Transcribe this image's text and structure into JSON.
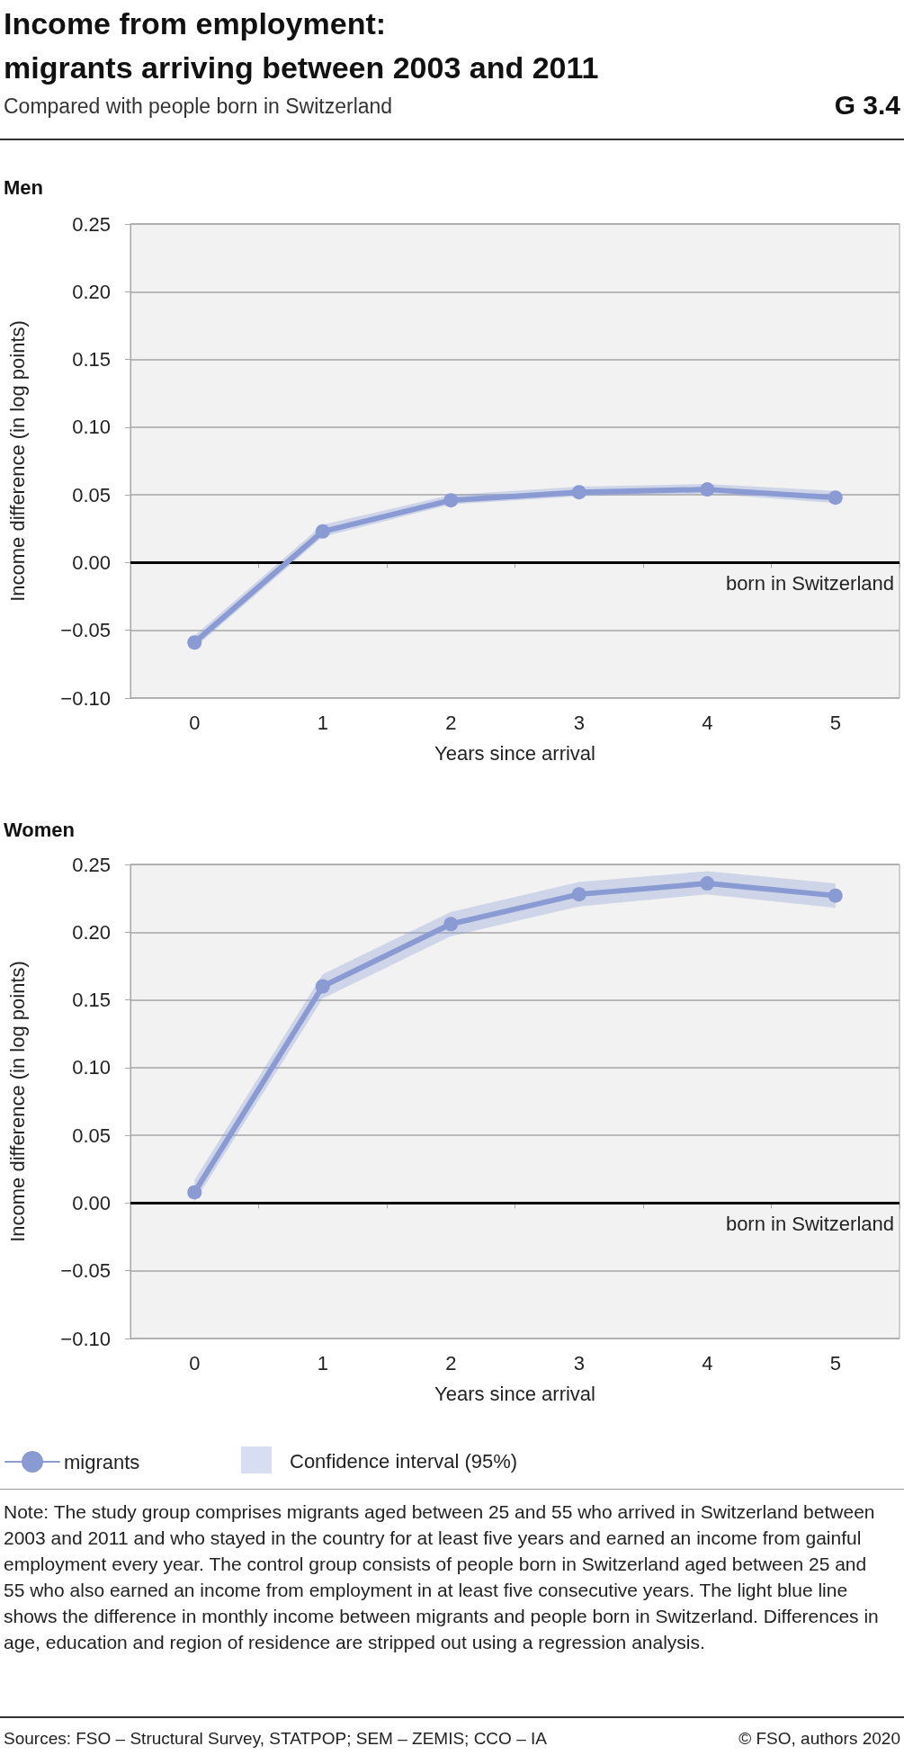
{
  "chart_data": [
    {
      "type": "line",
      "title": "Income from employment:\nmigrants arriving between 2003 and 2011",
      "subtitle": "Compared with people born in Switzerland",
      "annotations": [
        "G 3.4",
        "Men"
      ],
      "xlabel": "Years since arrival",
      "ylabel": "Income difference (in log points)",
      "categories": [
        "0",
        "1",
        "2",
        "3",
        "4",
        "5"
      ],
      "series": [
        {
          "color": "#8a9bd4",
          "values": [
            -0.059,
            0.023,
            0.046,
            0.052,
            0.054,
            0.048
          ],
          "lower": [
            -0.063,
            0.019,
            0.043,
            0.049,
            0.051,
            0.044
          ],
          "upper": [
            -0.054,
            0.028,
            0.05,
            0.056,
            0.058,
            0.053
          ]
        }
      ],
      "ylim": [
        -0.1,
        0.25
      ],
      "yticks": [
        {
          "value": -0.1,
          "label": "−0.10"
        },
        {
          "value": -0.05,
          "label": "−0.05"
        },
        {
          "value": 0,
          "label": "0.00"
        },
        {
          "value": 0.05,
          "label": "0.05"
        },
        {
          "value": 0.1,
          "label": "0.10"
        },
        {
          "value": 0.15,
          "label": "0.15"
        },
        {
          "value": 0.2,
          "label": "0.20"
        },
        {
          "value": 0.25,
          "label": "0.25"
        }
      ],
      "grid": "y",
      "marker": "circle",
      "line_style": "solid",
      "ref_lines": [
        {
          "axis": "y",
          "value": 0,
          "label": "born in Switzerland",
          "color": "#000000"
        }
      ]
    },
    {
      "type": "line",
      "title": "Women",
      "xlabel": "Years since arrival",
      "ylabel": "Income difference (in log points)",
      "categories": [
        "0",
        "1",
        "2",
        "3",
        "4",
        "5"
      ],
      "series": [
        {
          "name": "migrants",
          "color": "#8a9bd4",
          "values": [
            0.008,
            0.16,
            0.206,
            0.228,
            0.236,
            0.227
          ],
          "lower": [
            0.001,
            0.151,
            0.197,
            0.219,
            0.228,
            0.218
          ],
          "upper": [
            0.017,
            0.169,
            0.215,
            0.237,
            0.245,
            0.236
          ]
        }
      ],
      "ylim": [
        -0.1,
        0.25
      ],
      "yticks": [
        {
          "value": -0.1,
          "label": "−0.10"
        },
        {
          "value": -0.05,
          "label": "−0.05"
        },
        {
          "value": 0,
          "label": "0.00"
        },
        {
          "value": 0.05,
          "label": "0.05"
        },
        {
          "value": 0.1,
          "label": "0.10"
        },
        {
          "value": 0.15,
          "label": "0.15"
        },
        {
          "value": 0.2,
          "label": "0.20"
        },
        {
          "value": 0.25,
          "label": "0.25"
        }
      ],
      "grid": "y",
      "marker": "circle",
      "line_style": "solid",
      "legend": "bottom left",
      "ref_lines": [
        {
          "axis": "y",
          "value": 0,
          "label": "born in Switzerland",
          "color": "#000000"
        }
      ],
      "annotations": [
        "Confidence interval (95%)",
        "Note: The study group comprises migrants aged between 25 and 55 who arrived in Switzerland between 2003 and 2011 and who stayed in the country for at least five years and earned an income from gainful employment every year. The control group consists of people born in Switzerland aged between 25 and 55 who also earned an income from employment in at least five consecutive years. The light blue line shows the difference in monthly income between migrants and people born in Switzerland. Differences in age, education and region of residence are stripped out using a regression analysis.",
        "Sources: FSO – Structural Survey, STATPOP; SEM – ZEMIS; CCO – IA",
        "© FSO, authors 2020"
      ]
    }
  ]
}
